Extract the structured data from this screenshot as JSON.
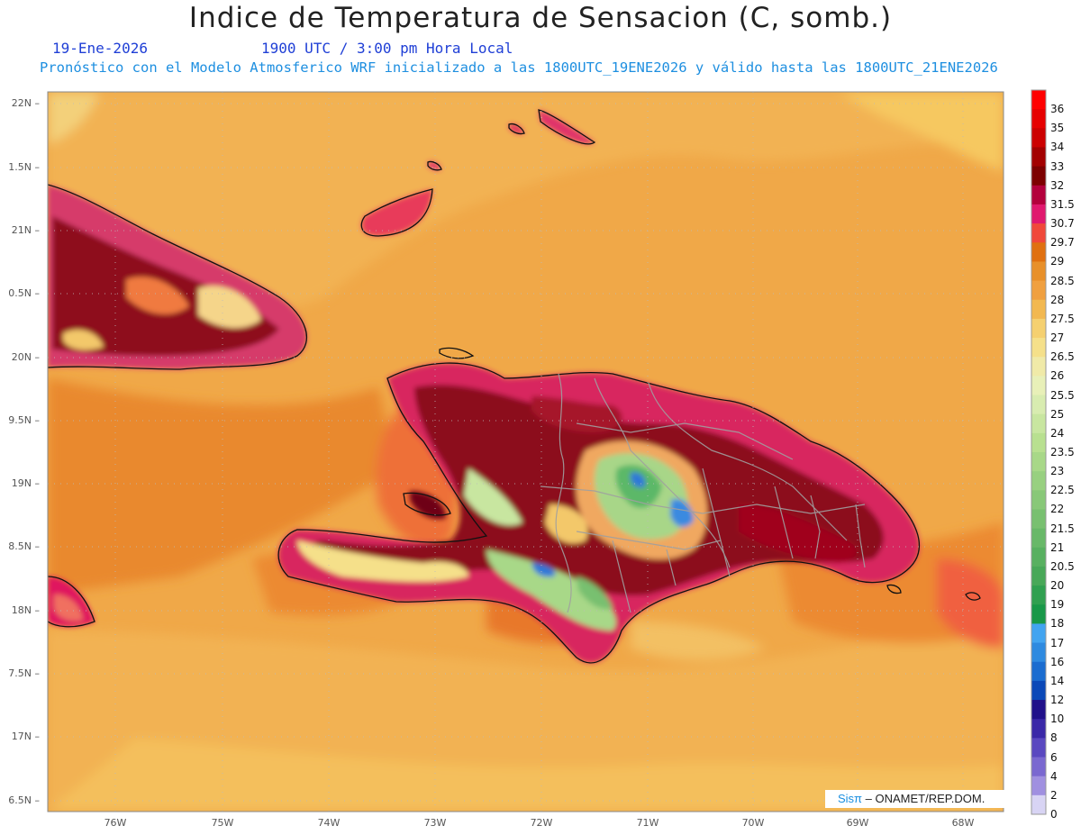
{
  "title": "Indice de Temperatura de Sensacion (C, somb.)",
  "date": "19-Ene-2026",
  "time": "1900 UTC / 3:00 pm Hora Local",
  "model_note": "Pronóstico con el Modelo Atmosferico WRF inicializado a las 1800UTC_19ENE2026 y válido hasta las  1800UTC_21ENE2026",
  "credit_logo": "Sisπ",
  "credit_text": " – ONAMET/REP.DOM.",
  "lat_labels": [
    "22N",
    "1.5N",
    "21N",
    "0.5N",
    "20N",
    "9.5N",
    "19N",
    "8.5N",
    "18N",
    "7.5N",
    "17N",
    "6.5N"
  ],
  "lon_labels": [
    "76W",
    "75W",
    "74W",
    "73W",
    "72W",
    "71W",
    "70W",
    "69W",
    "68W"
  ],
  "colorbar": {
    "labels": [
      "36",
      "35",
      "34",
      "33",
      "32",
      "31.5",
      "30.7",
      "29.7",
      "29",
      "28.5",
      "28",
      "27.5",
      "27",
      "26.5",
      "26",
      "25.5",
      "25",
      "24",
      "23.5",
      "23",
      "22.5",
      "22",
      "21.5",
      "21",
      "20.5",
      "20",
      "19",
      "18",
      "17",
      "16",
      "14",
      "12",
      "10",
      "8",
      "6",
      "4",
      "2",
      "0"
    ],
    "colors": [
      "#ff0000",
      "#e60000",
      "#cc0000",
      "#a30000",
      "#7d0000",
      "#b3003c",
      "#e0186e",
      "#f0483a",
      "#e07010",
      "#e8902a",
      "#f0a040",
      "#f2b850",
      "#f5d070",
      "#f5e08a",
      "#f0eaa8",
      "#e8f0b8",
      "#d8ecb0",
      "#c8e6a0",
      "#b8e090",
      "#a8d888",
      "#98d080",
      "#88c878",
      "#78c070",
      "#68b868",
      "#58b060",
      "#48a858",
      "#30a050",
      "#189848",
      "#42a4f0",
      "#2e8ae0",
      "#1a6cd0",
      "#0a48b8",
      "#20108a",
      "#3a28a8",
      "#5a48c0",
      "#7a68d0",
      "#a090e0",
      "#d8d4f4"
    ]
  }
}
